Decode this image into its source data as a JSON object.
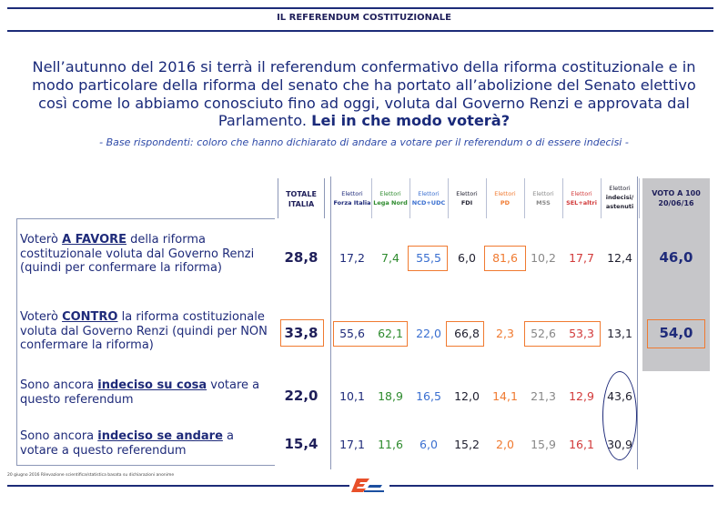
{
  "header": {
    "title": "IL REFERENDUM COSTITUZIONALE"
  },
  "question": {
    "text": "Nell’autunno del 2016 si terrà il referendum confermativo della riforma costituzionale e in modo particolare della riforma del senato che ha portato all’abolizione del Senato elettivo così come lo abbiamo conosciuto fino ad oggi, voluta dal Governo Renzi e approvata dal Parlamento.",
    "emphasis": "Lei in che modo voterà?"
  },
  "subtitle": "- Base rispondenti: coloro che hanno dichiarato di andare a votare per il referendum o di essere indecisi -",
  "table": {
    "total_header_line1": "TOTALE",
    "total_header_line2": "ITALIA",
    "voto_header_line1": "VOTO A 100",
    "voto_header_line2": "20/06/16",
    "columns": [
      {
        "l1": "Elettori",
        "l2": "Forza Italia",
        "color": "#1f2b7a"
      },
      {
        "l1": "Elettori",
        "l2": "Lega Nord",
        "color": "#2e8b2e"
      },
      {
        "l1": "Elettori",
        "l2": "NCD+UDC",
        "color": "#3a6fd0"
      },
      {
        "l1": "Elettori",
        "l2": "FDI",
        "color": "#1f1f2f"
      },
      {
        "l1": "Elettori",
        "l2": "PD",
        "color": "#f07a30"
      },
      {
        "l1": "Elettori",
        "l2": "M5S",
        "color": "#888888"
      },
      {
        "l1": "Elettori",
        "l2": "SEL+altri",
        "color": "#d23a3a"
      },
      {
        "l1": "Elettori",
        "l2": "indecisi/",
        "l3": "astenuti",
        "color": "#1f1f2f"
      }
    ],
    "rows": [
      {
        "pre": "Voterò ",
        "key": "A FAVORE",
        "post": " della riforma costituzionale voluta dal Governo Renzi (quindi per confermare la riforma)",
        "total": "28,8",
        "values": [
          "17,2",
          "7,4",
          "55,5",
          "6,0",
          "81,6",
          "10,2",
          "17,7",
          "12,4"
        ],
        "voto": "46,0"
      },
      {
        "pre": "Voterò ",
        "key": "CONTRO",
        "post": " la riforma costituzionale voluta dal Governo Renzi (quindi per NON confermare la riforma)",
        "total": "33,8",
        "values": [
          "55,6",
          "62,1",
          "22,0",
          "66,8",
          "2,3",
          "52,6",
          "53,3",
          "13,1"
        ],
        "voto": "54,0"
      },
      {
        "pre": "Sono ancora ",
        "key": "indeciso su cosa",
        "post": " votare a questo referendum",
        "total": "22,0",
        "values": [
          "10,1",
          "18,9",
          "16,5",
          "12,0",
          "14,1",
          "21,3",
          "12,9",
          "43,6"
        ]
      },
      {
        "pre": "Sono ancora ",
        "key": "indeciso se andare",
        "post": " a votare a questo referendum",
        "total": "15,4",
        "values": [
          "17,1",
          "11,6",
          "6,0",
          "15,2",
          "2,0",
          "15,9",
          "16,1",
          "30,9"
        ]
      }
    ]
  },
  "footnote": "20 giugno 2016 Rilevazione scientifica/statistica basata su dichiarazioni anonime",
  "logo": {
    "name": "euromedia-logo"
  }
}
